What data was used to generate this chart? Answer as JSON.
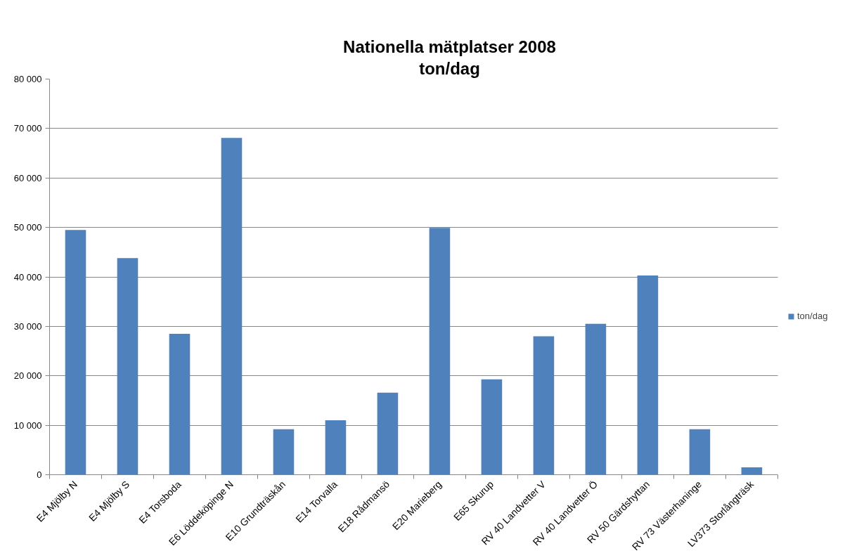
{
  "chart_data": {
    "type": "bar",
    "title": "Nationella mätplatser 2008",
    "subtitle": "ton/dag",
    "categories": [
      "E4 Mjölby N",
      "E4 Mjölby S",
      "E4 Torsboda",
      "E6 Löddeköpinge N",
      "E10 Grundträskån",
      "E14 Torvalla",
      "E18 Rådmansö",
      "E20 Marieberg",
      "E65 Skurup",
      "RV 40 Landvetter V",
      "RV 40 Landvetter Ö",
      "RV 50 Gärdshyttan",
      "RV 73 Västerhaninge",
      "LV373 Storlångträsk"
    ],
    "series": [
      {
        "name": "ton/dag",
        "color": "#4f81bd",
        "values": [
          49500,
          43800,
          28500,
          68100,
          9200,
          11000,
          16600,
          49900,
          19300,
          28000,
          30500,
          40300,
          9200,
          1500
        ]
      }
    ],
    "ylim": [
      0,
      80000
    ],
    "yticks": [
      0,
      {
        "value": 10000,
        "label": "10 000"
      },
      {
        "value": 20000,
        "label": "20 000"
      },
      {
        "value": 30000,
        "label": "30 000"
      },
      {
        "value": 40000,
        "label": "40 000"
      },
      {
        "value": 50000,
        "label": "50 000"
      },
      {
        "value": 60000,
        "label": "60 000"
      },
      {
        "value": 70000,
        "label": "70 000"
      },
      {
        "value": 80000,
        "label": "80 000"
      }
    ],
    "grid": "y",
    "legend": "right"
  }
}
